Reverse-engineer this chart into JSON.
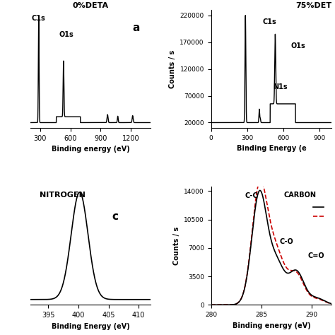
{
  "panel_a_title": "0%DETA",
  "panel_a_label": "a",
  "panel_a_xlabel": "Binding energy (eV)",
  "panel_a_xlim": [
    200,
    1400
  ],
  "panel_a_xticks": [
    300,
    600,
    900,
    1200
  ],
  "panel_b_title": "75%DET",
  "panel_b_ylabel": "Counts / s",
  "panel_b_xlabel": "Binding Energy (e",
  "panel_b_xlim": [
    0,
    1000
  ],
  "panel_b_xticks": [
    0,
    300,
    600,
    900
  ],
  "panel_b_yticks": [
    20000,
    70000,
    120000,
    170000,
    220000
  ],
  "panel_c_label": "c",
  "panel_c_text": "NITROGEN",
  "panel_c_xlabel": "Binding Energy (eV)",
  "panel_c_xlim": [
    392,
    412
  ],
  "panel_c_xticks": [
    395,
    400,
    405,
    410
  ],
  "panel_d_ylabel": "Counts / s",
  "panel_d_xlabel": "Binding energy (eV)",
  "panel_d_xlim": [
    280,
    292
  ],
  "panel_d_xticks": [
    280,
    285,
    290
  ],
  "panel_d_yticks": [
    0,
    3500,
    7000,
    10500,
    14000
  ],
  "panel_d_ylim": [
    0,
    14500
  ],
  "panel_d_title": "CARBON",
  "background_color": "#ffffff",
  "line_color": "#000000",
  "red_dashed_color": "#cc0000"
}
